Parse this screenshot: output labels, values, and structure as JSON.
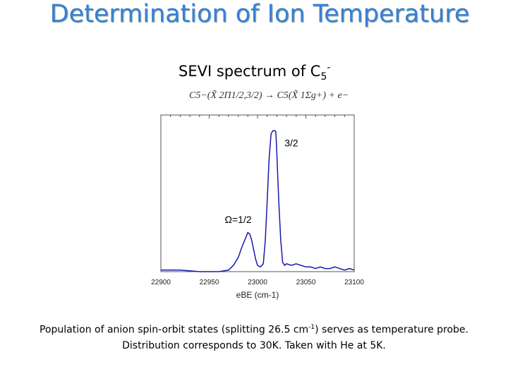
{
  "slide": {
    "title": "Determination of Ion Temperature",
    "subtitle_text": "SEVI spectrum of C",
    "subtitle_sub": "5",
    "subtitle_sup": "-",
    "equation": "C5−(X̃ 2Π1/2,3/2) → C5(X̃ 1Σg+) + e−",
    "caption_part1": "Population of anion spin-orbit states (splitting 26.5 cm",
    "caption_sup": "-1",
    "caption_part2": ") serves as temperature probe. Distribution corresponds to 30K.  Taken with He at 5K.",
    "title_color": "#3a7fd0"
  },
  "chart_data": {
    "type": "line",
    "xlabel": "eBE (cm-1)",
    "ylabel": "",
    "xlim": [
      22900,
      23100
    ],
    "ylim": [
      0,
      1
    ],
    "xticks": [
      "22900",
      "22950",
      "23000",
      "23050",
      "23100"
    ],
    "line_color": "#1a1aa8",
    "annotations": [
      {
        "text": "3/2",
        "x": 23035,
        "y": 0.8
      },
      {
        "text": "Ω=1/2",
        "x": 22980,
        "y": 0.31
      }
    ],
    "series": [
      {
        "x": [
          22900,
          22920,
          22940,
          22960,
          22970,
          22975,
          22980,
          22984,
          22988,
          22990,
          22992,
          22994,
          22996,
          22998,
          23000,
          23003,
          23006,
          23008,
          23010,
          23012,
          23014,
          23016,
          23017,
          23018,
          23019,
          23020,
          23022,
          23024,
          23026,
          23028,
          23030,
          23035,
          23040,
          23045,
          23050,
          23055,
          23060,
          23065,
          23070,
          23075,
          23080,
          23085,
          23090,
          23095,
          23100
        ],
        "values": [
          0.01,
          0.01,
          0.0,
          0.0,
          0.01,
          0.04,
          0.09,
          0.16,
          0.22,
          0.25,
          0.24,
          0.2,
          0.14,
          0.08,
          0.04,
          0.03,
          0.05,
          0.2,
          0.45,
          0.72,
          0.88,
          0.9,
          0.9,
          0.9,
          0.89,
          0.75,
          0.45,
          0.2,
          0.06,
          0.04,
          0.05,
          0.04,
          0.05,
          0.04,
          0.03,
          0.03,
          0.02,
          0.03,
          0.02,
          0.02,
          0.03,
          0.02,
          0.01,
          0.02,
          0.01
        ]
      }
    ]
  }
}
